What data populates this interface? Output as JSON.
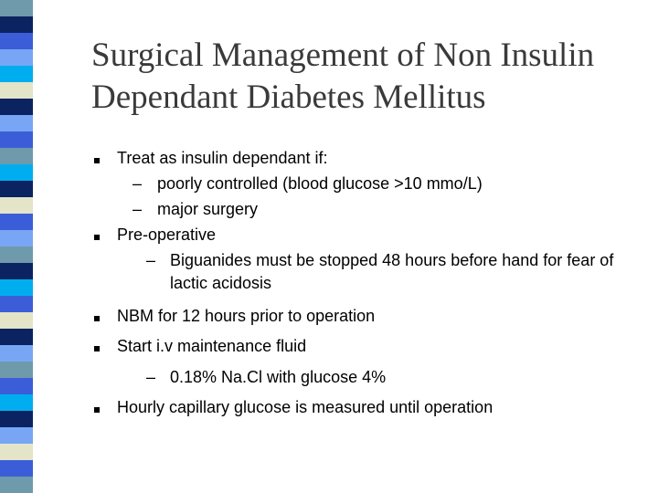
{
  "slide": {
    "title_lines": [
      "Surgical Management of Non Insulin",
      "Dependant Diabetes Mellitus"
    ],
    "bullets": [
      {
        "text": "Treat as insulin dependant if:",
        "sub": [
          "poorly controlled (blood glucose >10 mmo/L)",
          "major surgery"
        ]
      },
      {
        "text": "Pre-operative",
        "sub": [
          "Biguanides must be stopped 48 hours before hand for fear of",
          "lactic acidosis"
        ]
      },
      {
        "text": "NBM for 12 hours prior to operation"
      },
      {
        "text": "Start i.v maintenance fluid",
        "sub": [
          "0.18% Na.Cl with glucose 4%"
        ]
      },
      {
        "text": "Hourly capillary glucose is measured until operation"
      }
    ],
    "dash_glyph": "–"
  },
  "colors": {
    "stripe_palette": [
      "#6f9aab",
      "#0c2361",
      "#3b5ed8",
      "#79a6f4",
      "#00aef0",
      "#e3e4c8"
    ]
  }
}
